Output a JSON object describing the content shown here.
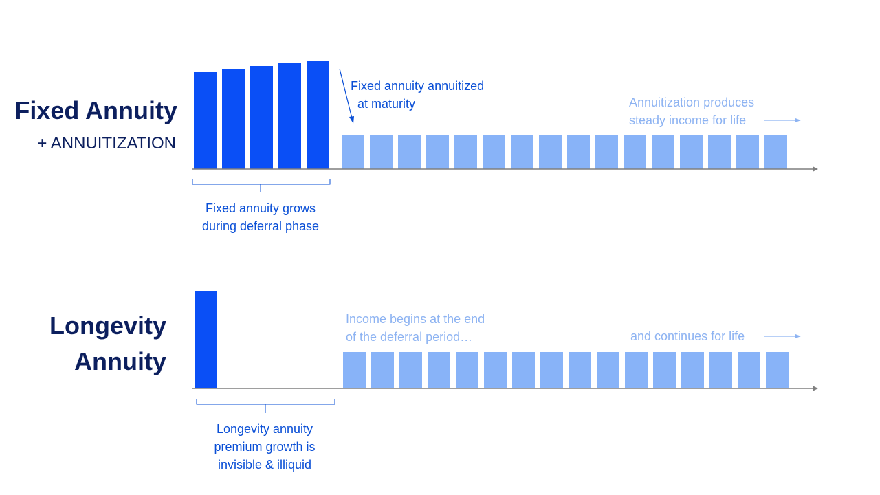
{
  "colors": {
    "title": "#0c1f5e",
    "dark_bar": "#0a4ff6",
    "light_bar": "#88b3f8",
    "dark_text": "#0a4fd6",
    "light_text": "#8db3f2",
    "axis": "#7f7f7f"
  },
  "fixed": {
    "title": "Fixed Annuity",
    "subtitle": "+ ANNUITIZATION",
    "growth_bar_values": [
      142,
      146,
      150,
      154,
      158
    ],
    "income_bar_count": 16,
    "callout_line1": "Fixed annuity annuitized",
    "callout_line2": "at maturity",
    "income_line1": "Annuitization produces",
    "income_line2": "steady income for life",
    "brace_line1": "Fixed annuity grows",
    "brace_line2": "during deferral phase"
  },
  "longevity": {
    "title_line1": "Longevity",
    "title_line2": "Annuity",
    "premium_bar_value": 142,
    "income_bar_count": 16,
    "begin_line1": "Income begins at the end",
    "begin_line2": "of the deferral  period…",
    "continues": "and continues for life",
    "brace_line1": "Longevity annuity",
    "brace_line2": "premium growth is",
    "brace_line3": "invisible & illiquid"
  }
}
